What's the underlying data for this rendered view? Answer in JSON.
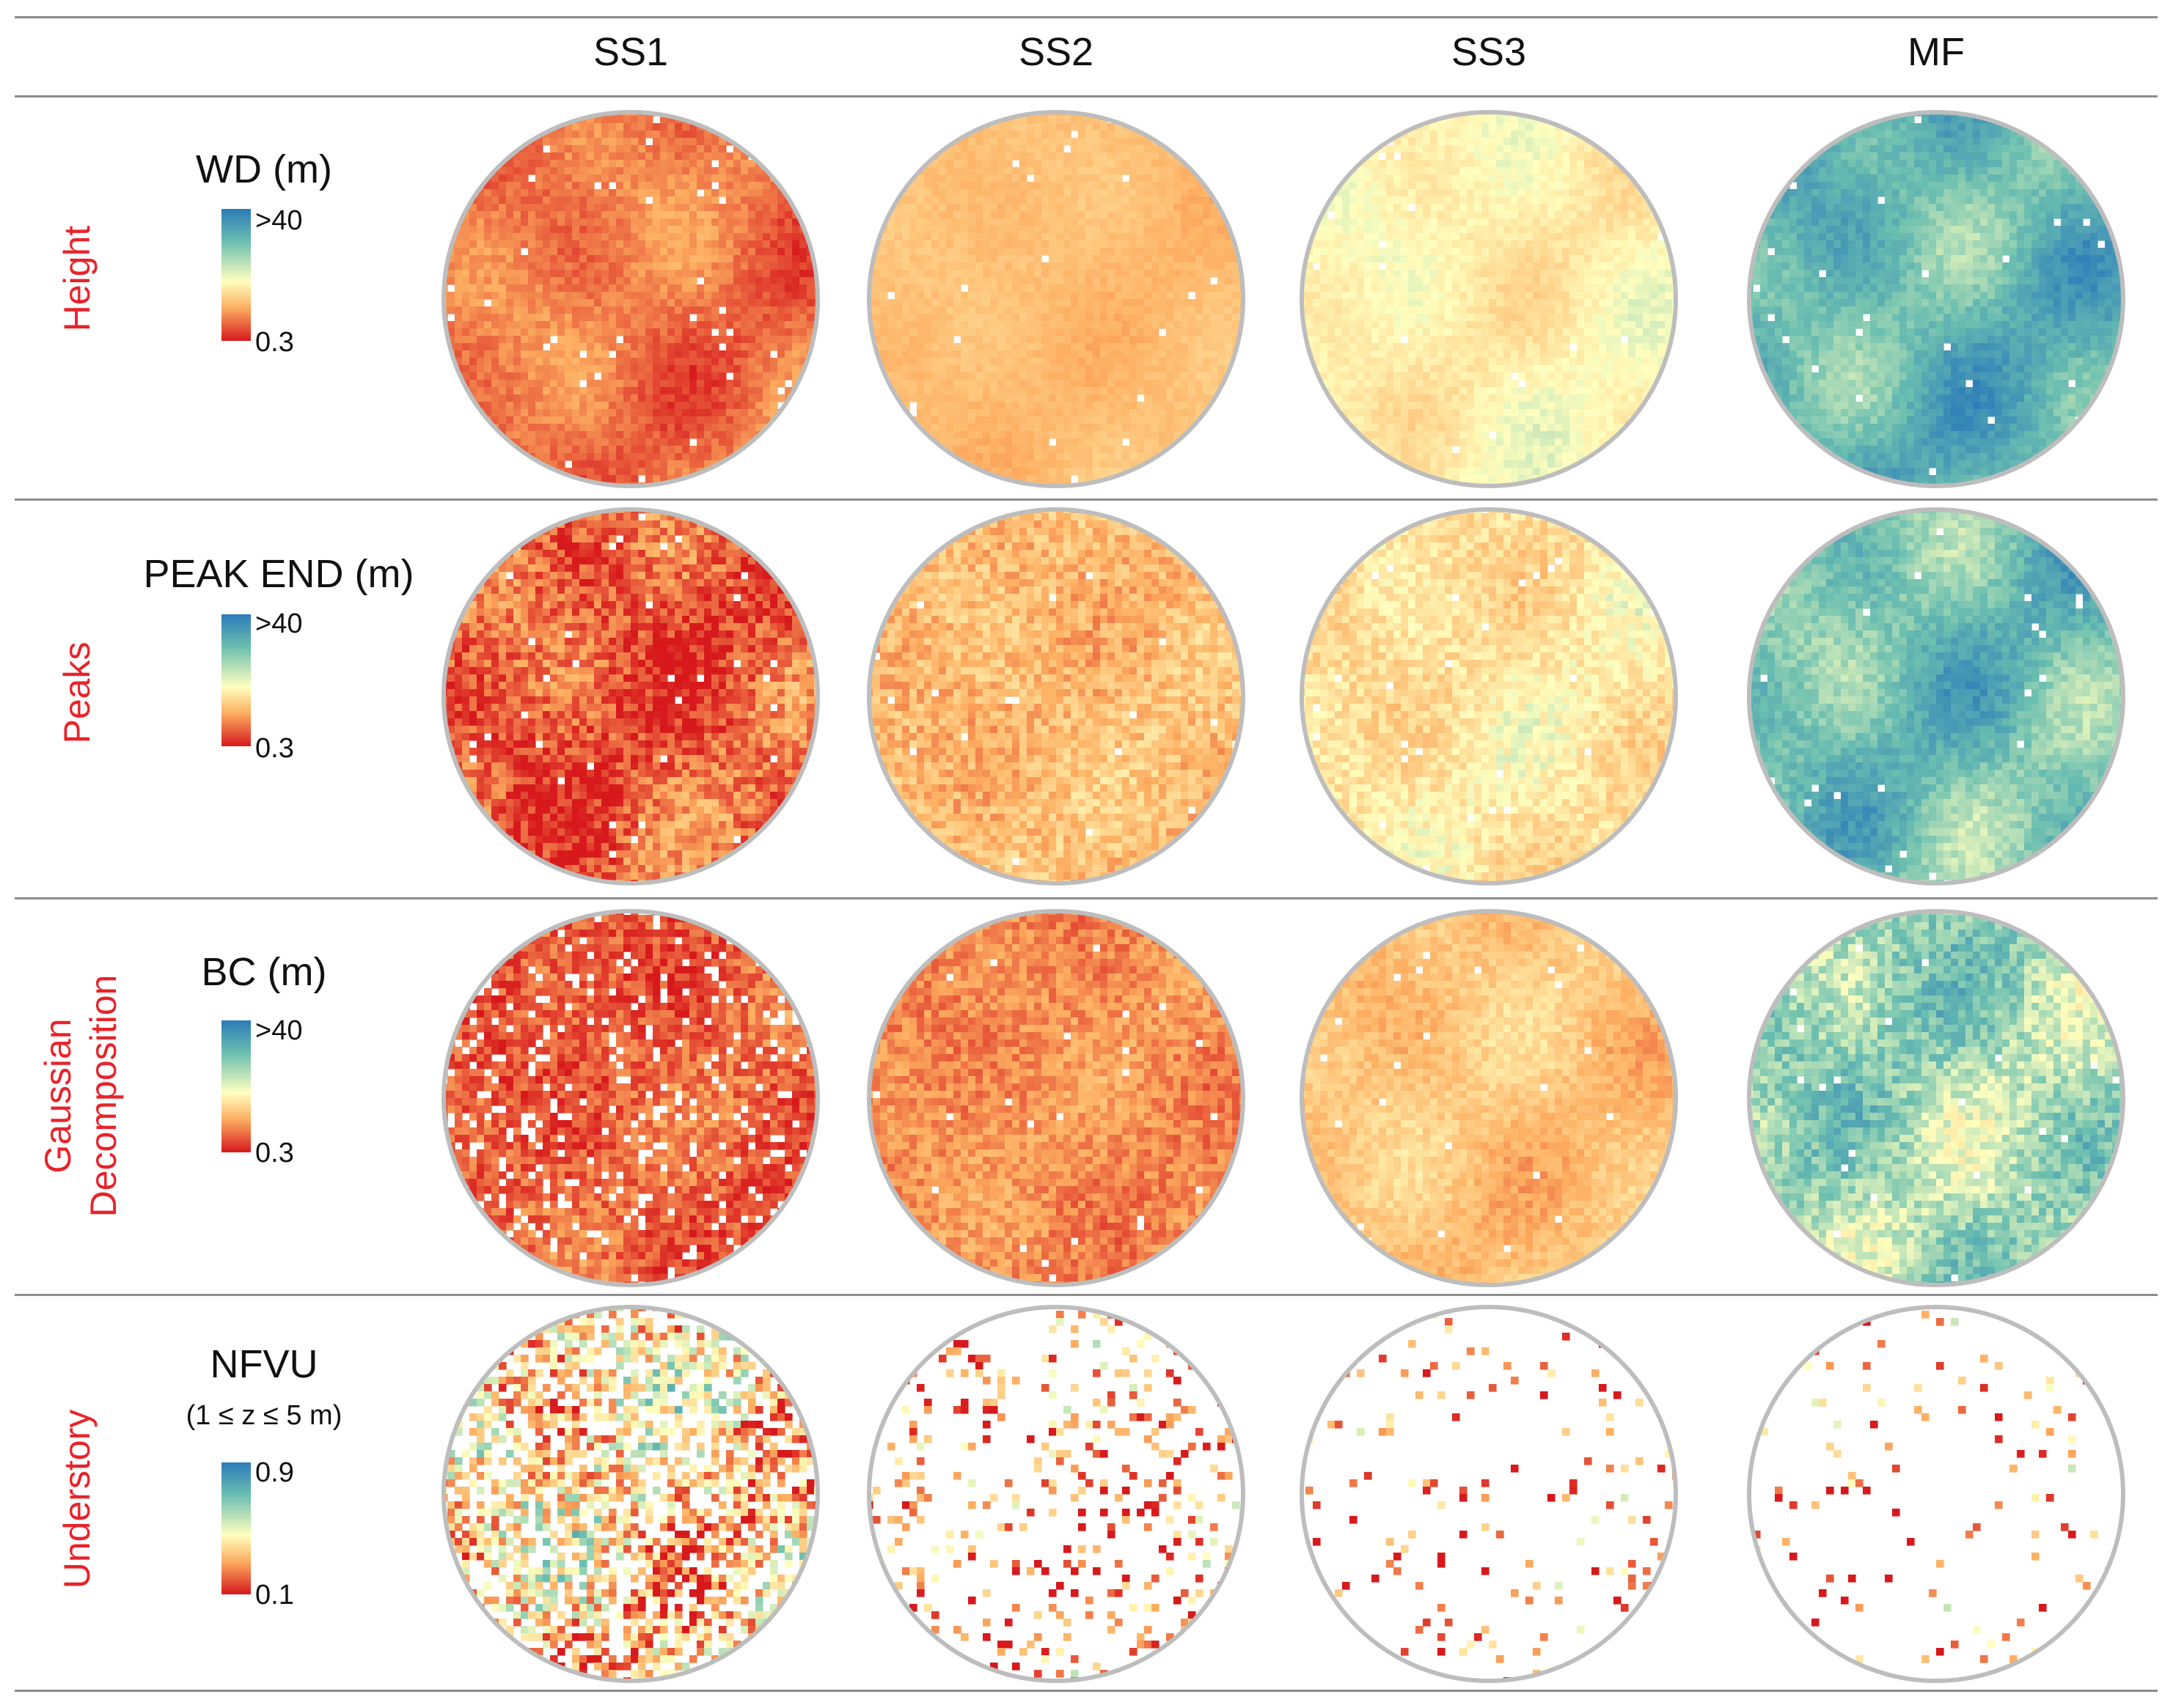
{
  "columns": [
    "SS1",
    "SS2",
    "SS3",
    "MF"
  ],
  "rows": [
    {
      "category": "Height",
      "metric": "WD (m)",
      "metric_sub": "",
      "scale_max": ">40",
      "scale_min": "0.3",
      "maps": [
        {
          "mean": 0.16,
          "spread": 0.12,
          "nodata": 0.02,
          "noise": 0.05
        },
        {
          "mean": 0.3,
          "spread": 0.05,
          "nodata": 0.01,
          "noise": 0.03
        },
        {
          "mean": 0.46,
          "spread": 0.1,
          "nodata": 0.01,
          "noise": 0.04
        },
        {
          "mean": 0.78,
          "spread": 0.18,
          "nodata": 0.01,
          "noise": 0.05
        }
      ]
    },
    {
      "category": "Peaks",
      "metric": "PEAK END (m)",
      "metric_sub": "",
      "scale_max": ">40",
      "scale_min": "0.3",
      "maps": [
        {
          "mean": 0.12,
          "spread": 0.14,
          "nodata": 0.02,
          "noise": 0.12
        },
        {
          "mean": 0.3,
          "spread": 0.06,
          "nodata": 0.01,
          "noise": 0.1
        },
        {
          "mean": 0.42,
          "spread": 0.1,
          "nodata": 0.01,
          "noise": 0.08
        },
        {
          "mean": 0.74,
          "spread": 0.18,
          "nodata": 0.01,
          "noise": 0.06
        }
      ]
    },
    {
      "category": "Gaussian Decomposition",
      "metric": "BC (m)",
      "metric_sub": "",
      "scale_max": ">40",
      "scale_min": "0.3",
      "maps": [
        {
          "mean": 0.12,
          "spread": 0.08,
          "nodata": 0.12,
          "noise": 0.1
        },
        {
          "mean": 0.2,
          "spread": 0.06,
          "nodata": 0.01,
          "noise": 0.08
        },
        {
          "mean": 0.32,
          "spread": 0.1,
          "nodata": 0.01,
          "noise": 0.06
        },
        {
          "mean": 0.66,
          "spread": 0.16,
          "nodata": 0.01,
          "noise": 0.1
        }
      ]
    },
    {
      "category": "Understory",
      "metric": "NFVU",
      "metric_sub": "(1 ≤ z ≤ 5 m)",
      "scale_max": "0.9",
      "scale_min": "0.1",
      "maps": [
        {
          "mean": 0.35,
          "spread": 0.25,
          "nodata": 0.4,
          "noise": 0.3
        },
        {
          "mean": 0.22,
          "spread": 0.2,
          "nodata": 0.84,
          "noise": 0.3
        },
        {
          "mean": 0.2,
          "spread": 0.2,
          "nodata": 0.93,
          "noise": 0.3
        },
        {
          "mean": 0.22,
          "spread": 0.2,
          "nodata": 0.95,
          "noise": 0.3
        }
      ]
    }
  ],
  "colors": {
    "high": "#2b7bb9",
    "mid_high": "#6cbfb0",
    "mid": "#ffffbf",
    "mid_low": "#fdae61",
    "low": "#d7191c",
    "label_red": "#e8232a",
    "circle_border": "#bdbdbd"
  }
}
